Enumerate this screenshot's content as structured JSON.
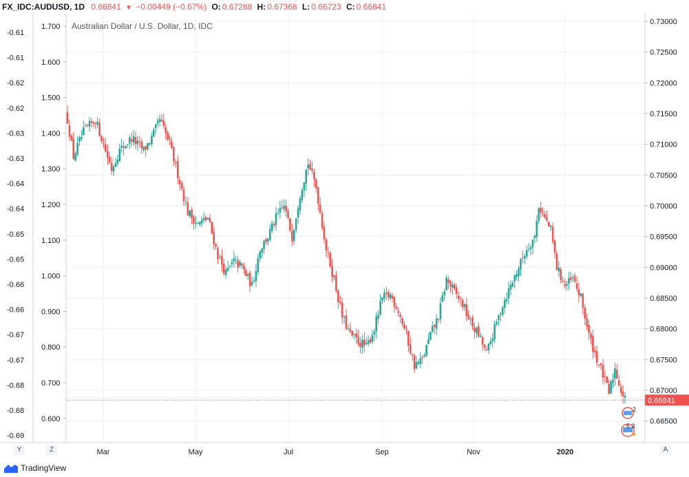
{
  "header": {
    "symbol": "FX_IDC:AUDUSD, 1D",
    "last": "0.66841",
    "change": "−0.00449 (−0.67%)",
    "o_label": "O:",
    "o_value": "0.67288",
    "h_label": "H:",
    "h_value": "0.67368",
    "l_label": "L:",
    "l_value": "0.66723",
    "c_label": "C:",
    "c_value": "0.66841"
  },
  "chart_data": {
    "type": "candlestick",
    "title": "Australian Dollar / U.S. Dollar, 1D, IDC",
    "x_tick_labels": [
      "Mar",
      "May",
      "Jul",
      "Sep",
      "Nov",
      "2020"
    ],
    "right_axis": {
      "ticks": [
        "0.73000",
        "0.72500",
        "0.72000",
        "0.71500",
        "0.71000",
        "0.70500",
        "0.70000",
        "0.69500",
        "0.69000",
        "0.68500",
        "0.68000",
        "0.67500",
        "0.67000",
        "0.66500"
      ],
      "range": [
        0.6615,
        0.731
      ],
      "last_price_label": "0.66841",
      "last_price": 0.66841
    },
    "inner_left_axis": {
      "ticks": [
        "1.700",
        "1.600",
        "1.500",
        "1.400",
        "1.300",
        "1.200",
        "1.100",
        "1.000",
        "0.900",
        "0.800",
        "0.700",
        "0.600"
      ]
    },
    "outer_left_axis": {
      "ticks": [
        "-0.61",
        "-0.61",
        "-0.62",
        "-0.62",
        "-0.63",
        "-0.63",
        "-0.64",
        "-0.64",
        "-0.65",
        "-0.65",
        "-0.66",
        "-0.66",
        "-0.67",
        "-0.67",
        "-0.68",
        "-0.68",
        "-0.69"
      ]
    },
    "price_path": [
      [
        0,
        0.714
      ],
      [
        3,
        0.708
      ],
      [
        8,
        0.712
      ],
      [
        14,
        0.714
      ],
      [
        18,
        0.71
      ],
      [
        22,
        0.706
      ],
      [
        26,
        0.709
      ],
      [
        32,
        0.711
      ],
      [
        38,
        0.709
      ],
      [
        42,
        0.711
      ],
      [
        46,
        0.714
      ],
      [
        51,
        0.71
      ],
      [
        56,
        0.704
      ],
      [
        60,
        0.699
      ],
      [
        65,
        0.697
      ],
      [
        70,
        0.698
      ],
      [
        75,
        0.692
      ],
      [
        79,
        0.689
      ],
      [
        83,
        0.691
      ],
      [
        87,
        0.69
      ],
      [
        92,
        0.687
      ],
      [
        96,
        0.693
      ],
      [
        100,
        0.695
      ],
      [
        104,
        0.698
      ],
      [
        108,
        0.7
      ],
      [
        112,
        0.695
      ],
      [
        116,
        0.702
      ],
      [
        120,
        0.707
      ],
      [
        124,
        0.703
      ],
      [
        129,
        0.693
      ],
      [
        133,
        0.688
      ],
      [
        137,
        0.682
      ],
      [
        141,
        0.679
      ],
      [
        145,
        0.678
      ],
      [
        149,
        0.677
      ],
      [
        153,
        0.68
      ],
      [
        157,
        0.685
      ],
      [
        161,
        0.6855
      ],
      [
        165,
        0.683
      ],
      [
        169,
        0.679
      ],
      [
        173,
        0.674
      ],
      [
        177,
        0.675
      ],
      [
        181,
        0.679
      ],
      [
        185,
        0.682
      ],
      [
        189,
        0.688
      ],
      [
        193,
        0.686
      ],
      [
        197,
        0.684
      ],
      [
        201,
        0.681
      ],
      [
        205,
        0.679
      ],
      [
        209,
        0.676
      ],
      [
        213,
        0.68
      ],
      [
        217,
        0.684
      ],
      [
        221,
        0.687
      ],
      [
        225,
        0.69
      ],
      [
        229,
        0.693
      ],
      [
        233,
        0.695
      ],
      [
        235,
        0.7
      ],
      [
        238,
        0.698
      ],
      [
        241,
        0.696
      ],
      [
        244,
        0.69
      ],
      [
        248,
        0.687
      ],
      [
        252,
        0.688
      ],
      [
        256,
        0.685
      ],
      [
        260,
        0.679
      ],
      [
        263,
        0.676
      ],
      [
        267,
        0.6725
      ],
      [
        270,
        0.6695
      ],
      [
        273,
        0.6735
      ],
      [
        276,
        0.67
      ],
      [
        278,
        0.6684
      ]
    ],
    "price_line_style": "dotted",
    "colors": {
      "up": "#26a69a",
      "down": "#ef5350",
      "grid": "#e9edf2",
      "axis_text": "#131722",
      "last_price_bg": "#ef5350"
    },
    "grid": true
  },
  "events": [
    {
      "count": "2",
      "kind": "flag-badge"
    },
    {
      "count": "6 3",
      "kind": "flag-badge"
    }
  ],
  "corners": {
    "y": "Y",
    "z": "Z",
    "a": "A"
  },
  "footer": {
    "brand": "TradingView"
  }
}
